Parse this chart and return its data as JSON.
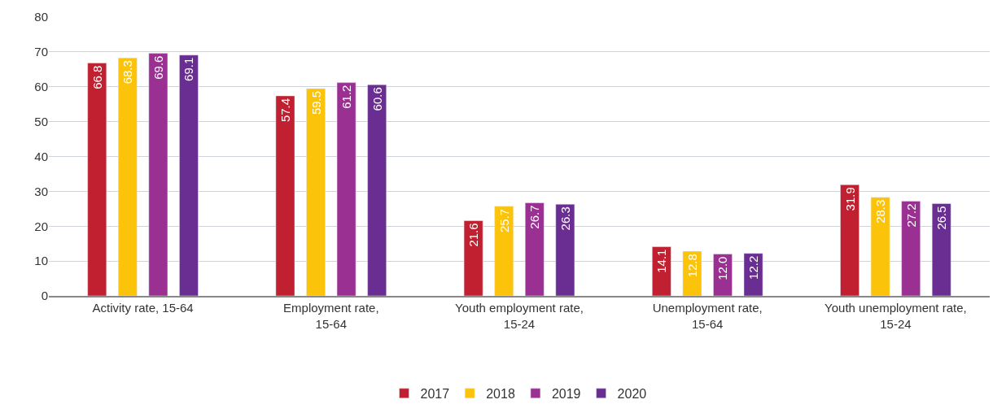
{
  "chart_data": {
    "type": "bar",
    "categories": [
      "Activity rate, 15-64",
      "Employment rate, 15-64",
      "Youth employment rate, 15-24",
      "Unemployment rate, 15-64",
      "Youth unemployment rate, 15-24"
    ],
    "series": [
      {
        "name": "2017",
        "color": "#c0202f",
        "values": [
          66.8,
          57.4,
          21.6,
          14.1,
          31.9
        ],
        "value_labels": [
          "66.8",
          "57.4",
          "21.6",
          "14.1",
          "31.9"
        ]
      },
      {
        "name": "2018",
        "color": "#fcc30b",
        "values": [
          68.3,
          59.5,
          25.7,
          12.8,
          28.3
        ],
        "value_labels": [
          "68.3",
          "59.5",
          "25.7",
          "12.8",
          "28.3"
        ]
      },
      {
        "name": "2019",
        "color": "#9b3093",
        "values": [
          69.6,
          61.2,
          26.7,
          12.0,
          27.2
        ],
        "value_labels": [
          "69.6",
          "61.2",
          "26.7",
          "12.0",
          "27.2"
        ]
      },
      {
        "name": "2020",
        "color": "#6a2d91",
        "values": [
          69.1,
          60.6,
          26.3,
          12.2,
          26.5
        ],
        "value_labels": [
          "69.1",
          "60.6",
          "26.3",
          "12.2",
          "26.5"
        ]
      }
    ],
    "ylim": [
      0,
      80
    ],
    "yticks": [
      0,
      10,
      20,
      30,
      40,
      50,
      60,
      70,
      80
    ],
    "grid": "y",
    "legend": "bottom"
  }
}
